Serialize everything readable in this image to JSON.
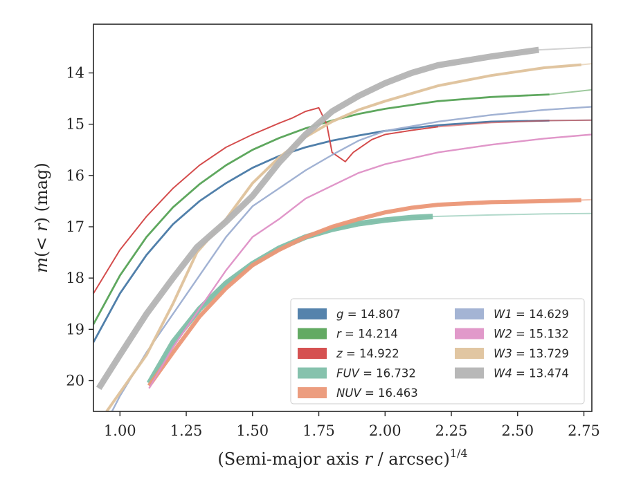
{
  "chart_data": {
    "type": "line",
    "title": "",
    "xlabel_text": "(Semi-major axis ",
    "xlabel_var": "r",
    "xlabel_tail": " / arcsec)",
    "xlabel_sup": "1/4",
    "ylabel_pre": "m",
    "ylabel_mid": "(< ",
    "ylabel_var": "r",
    "ylabel_tail": ") (mag)",
    "xlim": [
      0.9,
      2.78
    ],
    "ylim": [
      20.6,
      13.05
    ],
    "y_inverted": true,
    "grid": false,
    "xticks": [
      1.0,
      1.25,
      1.5,
      1.75,
      2.0,
      2.25,
      2.5,
      2.75
    ],
    "xtick_labels": [
      "1.00",
      "1.25",
      "1.50",
      "1.75",
      "2.00",
      "2.25",
      "2.50",
      "2.75"
    ],
    "yticks": [
      14,
      15,
      16,
      17,
      18,
      19,
      20
    ],
    "ytick_labels": [
      "14",
      "15",
      "16",
      "17",
      "18",
      "19",
      "20"
    ],
    "legend_position": "lower-right",
    "series": [
      {
        "name": "g",
        "value": "14.807",
        "color": "#4c7ca8",
        "band": 2.8,
        "band_end": 2.62,
        "points": [
          [
            0.9,
            19.25
          ],
          [
            1.0,
            18.3
          ],
          [
            1.1,
            17.55
          ],
          [
            1.2,
            16.95
          ],
          [
            1.3,
            16.5
          ],
          [
            1.4,
            16.15
          ],
          [
            1.5,
            15.85
          ],
          [
            1.6,
            15.62
          ],
          [
            1.7,
            15.45
          ],
          [
            1.8,
            15.32
          ],
          [
            1.9,
            15.22
          ],
          [
            2.0,
            15.13
          ],
          [
            2.2,
            15.02
          ],
          [
            2.4,
            14.95
          ],
          [
            2.62,
            14.93
          ],
          [
            2.78,
            14.92
          ]
        ]
      },
      {
        "name": "r",
        "value": "14.214",
        "color": "#5ba55b",
        "band": 2.8,
        "band_end": 2.62,
        "points": [
          [
            0.9,
            18.9
          ],
          [
            1.0,
            17.95
          ],
          [
            1.1,
            17.2
          ],
          [
            1.2,
            16.62
          ],
          [
            1.3,
            16.17
          ],
          [
            1.4,
            15.8
          ],
          [
            1.5,
            15.5
          ],
          [
            1.6,
            15.27
          ],
          [
            1.7,
            15.08
          ],
          [
            1.8,
            14.93
          ],
          [
            1.9,
            14.8
          ],
          [
            2.0,
            14.7
          ],
          [
            2.2,
            14.55
          ],
          [
            2.4,
            14.47
          ],
          [
            2.62,
            14.42
          ],
          [
            2.78,
            14.33
          ]
        ]
      },
      {
        "name": "z",
        "value": "14.922",
        "color": "#d34848",
        "band": 1.8,
        "band_end": 2.2,
        "points": [
          [
            0.9,
            18.3
          ],
          [
            1.0,
            17.45
          ],
          [
            1.1,
            16.8
          ],
          [
            1.2,
            16.25
          ],
          [
            1.3,
            15.8
          ],
          [
            1.4,
            15.45
          ],
          [
            1.5,
            15.2
          ],
          [
            1.6,
            14.98
          ],
          [
            1.65,
            14.88
          ],
          [
            1.7,
            14.75
          ],
          [
            1.75,
            14.68
          ],
          [
            1.78,
            15.0
          ],
          [
            1.8,
            15.55
          ],
          [
            1.85,
            15.73
          ],
          [
            1.88,
            15.55
          ],
          [
            1.95,
            15.3
          ],
          [
            2.0,
            15.2
          ],
          [
            2.1,
            15.12
          ],
          [
            2.2,
            15.05
          ],
          [
            2.4,
            14.97
          ],
          [
            2.62,
            14.93
          ],
          [
            2.78,
            14.92
          ]
        ]
      },
      {
        "name": "FUV",
        "value": "16.732",
        "color": "#7fbfa9",
        "band": 8,
        "band_end": 2.18,
        "start": 1.11,
        "points": [
          [
            1.11,
            20.05
          ],
          [
            1.2,
            19.25
          ],
          [
            1.3,
            18.6
          ],
          [
            1.4,
            18.1
          ],
          [
            1.5,
            17.72
          ],
          [
            1.6,
            17.42
          ],
          [
            1.7,
            17.2
          ],
          [
            1.8,
            17.05
          ],
          [
            1.9,
            16.94
          ],
          [
            2.0,
            16.87
          ],
          [
            2.1,
            16.82
          ],
          [
            2.18,
            16.8
          ],
          [
            2.4,
            16.77
          ],
          [
            2.6,
            16.75
          ],
          [
            2.78,
            16.74
          ]
        ]
      },
      {
        "name": "NUV",
        "value": "16.463",
        "color": "#eb9878",
        "band": 6,
        "band_end": 2.74,
        "start": 1.11,
        "points": [
          [
            1.11,
            20.1
          ],
          [
            1.2,
            19.45
          ],
          [
            1.3,
            18.75
          ],
          [
            1.4,
            18.2
          ],
          [
            1.5,
            17.75
          ],
          [
            1.6,
            17.45
          ],
          [
            1.7,
            17.2
          ],
          [
            1.8,
            17.0
          ],
          [
            1.9,
            16.85
          ],
          [
            2.0,
            16.72
          ],
          [
            2.1,
            16.63
          ],
          [
            2.2,
            16.57
          ],
          [
            2.4,
            16.52
          ],
          [
            2.6,
            16.5
          ],
          [
            2.74,
            16.48
          ],
          [
            2.78,
            16.47
          ]
        ]
      },
      {
        "name": "W1",
        "value": "14.629",
        "color": "#9fb0d2",
        "band": 2.4,
        "band_end": 2.78,
        "start": 0.9,
        "points": [
          [
            0.9,
            21.3
          ],
          [
            1.0,
            20.3
          ],
          [
            1.1,
            19.45
          ],
          [
            1.2,
            18.7
          ],
          [
            1.3,
            17.95
          ],
          [
            1.4,
            17.2
          ],
          [
            1.5,
            16.6
          ],
          [
            1.6,
            16.25
          ],
          [
            1.7,
            15.9
          ],
          [
            1.8,
            15.6
          ],
          [
            1.9,
            15.32
          ],
          [
            2.0,
            15.13
          ],
          [
            2.2,
            14.95
          ],
          [
            2.4,
            14.82
          ],
          [
            2.6,
            14.72
          ],
          [
            2.78,
            14.66
          ]
        ]
      },
      {
        "name": "W2",
        "value": "15.132",
        "color": "#df94c7",
        "band": 2.4,
        "band_end": 2.78,
        "start": 1.11,
        "points": [
          [
            1.11,
            20.15
          ],
          [
            1.2,
            19.35
          ],
          [
            1.3,
            18.6
          ],
          [
            1.4,
            17.85
          ],
          [
            1.5,
            17.2
          ],
          [
            1.6,
            16.85
          ],
          [
            1.7,
            16.45
          ],
          [
            1.8,
            16.2
          ],
          [
            1.9,
            15.95
          ],
          [
            2.0,
            15.78
          ],
          [
            2.2,
            15.55
          ],
          [
            2.4,
            15.4
          ],
          [
            2.6,
            15.28
          ],
          [
            2.78,
            15.2
          ]
        ]
      },
      {
        "name": "W3",
        "value": "13.729",
        "color": "#dfc39d",
        "band": 4,
        "band_end": 2.74,
        "start": 0.9,
        "points": [
          [
            0.95,
            20.6
          ],
          [
            1.1,
            19.5
          ],
          [
            1.2,
            18.5
          ],
          [
            1.29,
            17.5
          ],
          [
            1.4,
            16.85
          ],
          [
            1.5,
            16.15
          ],
          [
            1.6,
            15.65
          ],
          [
            1.7,
            15.25
          ],
          [
            1.8,
            14.95
          ],
          [
            1.9,
            14.72
          ],
          [
            2.0,
            14.55
          ],
          [
            2.2,
            14.25
          ],
          [
            2.4,
            14.05
          ],
          [
            2.6,
            13.9
          ],
          [
            2.74,
            13.84
          ],
          [
            2.78,
            13.82
          ]
        ]
      },
      {
        "name": "W4",
        "value": "13.474",
        "color": "#b4b4b4",
        "band": 9,
        "band_end": 2.58,
        "start": 0.9,
        "points": [
          [
            0.92,
            20.15
          ],
          [
            1.0,
            19.5
          ],
          [
            1.1,
            18.7
          ],
          [
            1.2,
            18.0
          ],
          [
            1.29,
            17.4
          ],
          [
            1.4,
            16.9
          ],
          [
            1.5,
            16.4
          ],
          [
            1.6,
            15.75
          ],
          [
            1.7,
            15.2
          ],
          [
            1.8,
            14.75
          ],
          [
            1.9,
            14.45
          ],
          [
            2.0,
            14.2
          ],
          [
            2.1,
            14.0
          ],
          [
            2.2,
            13.85
          ],
          [
            2.4,
            13.68
          ],
          [
            2.58,
            13.55
          ],
          [
            2.78,
            13.5
          ]
        ]
      }
    ]
  }
}
